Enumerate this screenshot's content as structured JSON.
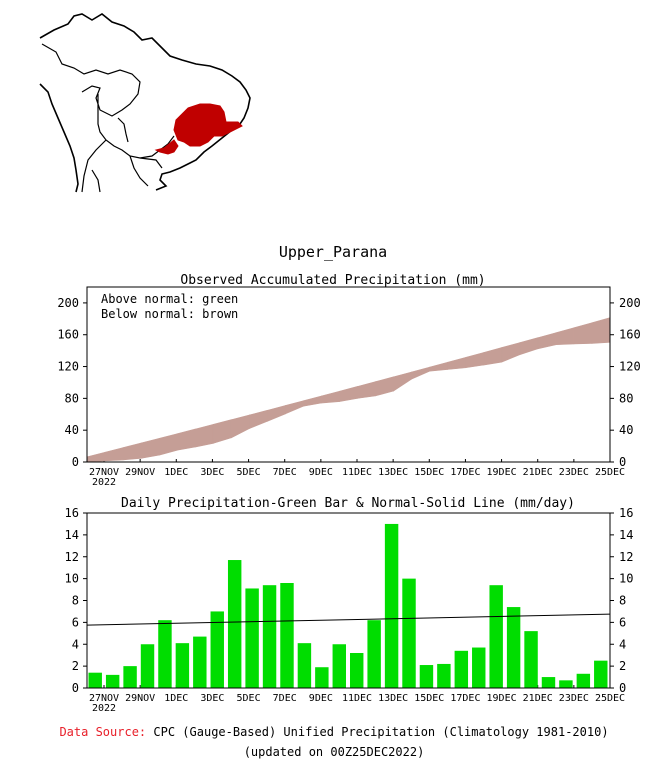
{
  "region_name": "Upper_Parana",
  "map": {
    "land_color": "#ffffff",
    "border_color": "#000000",
    "highlight_color": "#c00000"
  },
  "footer": {
    "source_label": "Data Source:",
    "source_text": "CPC (Gauge-Based) Unified Precipitation (Climatology 1981-2010)",
    "updated": "(updated on 00Z25DEC2022)",
    "source_label_color": "#e8202a"
  },
  "chart_data": [
    {
      "type": "area",
      "title": "Observed Accumulated Precipitation (mm)",
      "xlabel": "",
      "ylabel": "mm",
      "x_tick_labels": [
        "27NOV",
        "29NOV",
        "1DEC",
        "3DEC",
        "5DEC",
        "7DEC",
        "9DEC",
        "11DEC",
        "13DEC",
        "15DEC",
        "17DEC",
        "19DEC",
        "21DEC",
        "23DEC",
        "25DEC"
      ],
      "x_year_label": "2022",
      "ylim": [
        0,
        220
      ],
      "y_ticks": [
        0,
        40,
        80,
        120,
        160,
        200
      ],
      "legend": [
        "Above normal: green",
        "Below normal: brown"
      ],
      "legend_position": "top-left",
      "above_color": "#00cc00",
      "below_color": "#c59e96",
      "days": [
        "26NOV",
        "27NOV",
        "28NOV",
        "29NOV",
        "30NOV",
        "1DEC",
        "2DEC",
        "3DEC",
        "4DEC",
        "5DEC",
        "6DEC",
        "7DEC",
        "8DEC",
        "9DEC",
        "10DEC",
        "11DEC",
        "12DEC",
        "13DEC",
        "14DEC",
        "15DEC",
        "16DEC",
        "17DEC",
        "18DEC",
        "19DEC",
        "20DEC",
        "21DEC",
        "22DEC",
        "23DEC",
        "24DEC",
        "25DEC"
      ],
      "series": [
        {
          "name": "Observed",
          "values": [
            0,
            1.4,
            2.6,
            4.6,
            8.6,
            14.8,
            18.8,
            23.4,
            30.4,
            42.0,
            51.1,
            60.5,
            70.1,
            74.1,
            76.0,
            80.0,
            83.1,
            89.2,
            104.2,
            114.2,
            116.3,
            118.5,
            121.9,
            125.6,
            134.9,
            142.3,
            147.4,
            148.4,
            149.1,
            150.4
          ]
        },
        {
          "name": "Normal",
          "values": [
            6.5,
            12.3,
            18.1,
            23.9,
            29.7,
            35.5,
            41.4,
            47.3,
            53.2,
            59.1,
            65.0,
            71.0,
            77.0,
            83.0,
            89.0,
            95.0,
            101.0,
            107.1,
            113.2,
            119.3,
            125.4,
            131.5,
            137.7,
            143.9,
            150.1,
            156.3,
            162.5,
            168.8,
            175.1,
            181.4
          ]
        }
      ]
    },
    {
      "type": "bar",
      "title": "Daily Precipitation-Green Bar & Normal-Solid Line (mm/day)",
      "xlabel": "",
      "ylabel": "mm/day",
      "x_tick_labels": [
        "27NOV",
        "29NOV",
        "1DEC",
        "3DEC",
        "5DEC",
        "7DEC",
        "9DEC",
        "11DEC",
        "13DEC",
        "15DEC",
        "17DEC",
        "19DEC",
        "21DEC",
        "23DEC",
        "25DEC"
      ],
      "x_year_label": "2022",
      "ylim": [
        0,
        16
      ],
      "y_ticks": [
        0,
        2,
        4,
        6,
        8,
        10,
        12,
        14,
        16
      ],
      "bar_color": "#00dd00",
      "categories": [
        "26NOV",
        "27NOV",
        "28NOV",
        "29NOV",
        "30NOV",
        "1DEC",
        "2DEC",
        "3DEC",
        "4DEC",
        "5DEC",
        "6DEC",
        "7DEC",
        "8DEC",
        "9DEC",
        "10DEC",
        "11DEC",
        "12DEC",
        "13DEC",
        "14DEC",
        "15DEC",
        "16DEC",
        "17DEC",
        "18DEC",
        "19DEC",
        "20DEC",
        "21DEC",
        "22DEC",
        "23DEC",
        "24DEC",
        "25DEC"
      ],
      "values": [
        1.4,
        1.2,
        2.0,
        4.0,
        6.2,
        4.1,
        4.7,
        7.0,
        11.7,
        9.1,
        9.4,
        9.6,
        4.1,
        1.9,
        4.0,
        3.2,
        6.2,
        15.0,
        10.0,
        2.1,
        2.2,
        3.4,
        3.7,
        9.4,
        7.4,
        5.2,
        1.0,
        0.7,
        1.3,
        2.5
      ],
      "normal_line": {
        "name": "Normal",
        "values": [
          5.75,
          6.75
        ]
      }
    }
  ]
}
